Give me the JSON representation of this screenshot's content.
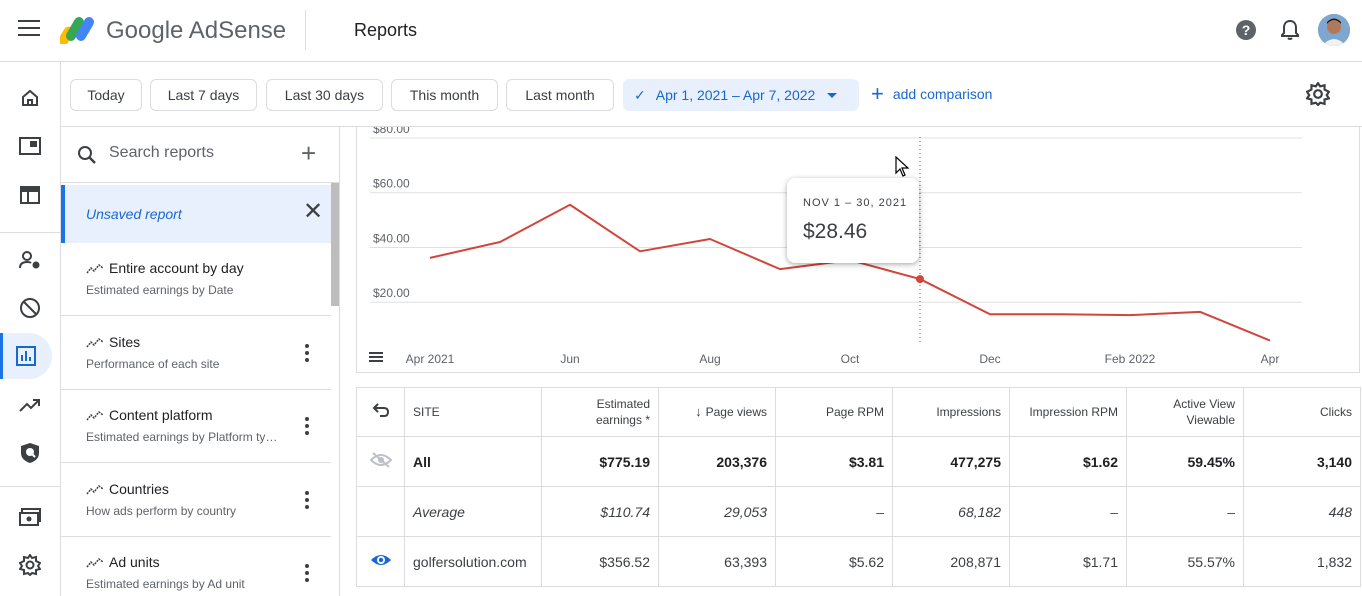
{
  "app": {
    "brand": "Google AdSense",
    "page_title": "Reports",
    "help_glyph": "?"
  },
  "date_chips": [
    "Today",
    "Last 7 days",
    "Last 30 days",
    "This month",
    "Last month"
  ],
  "date_range": {
    "label": "Apr 1, 2021 – Apr 7, 2022",
    "check_glyph": "✓"
  },
  "add_comparison": "add comparison",
  "search": {
    "placeholder": "Search reports",
    "add_glyph": "+"
  },
  "unsaved_report": {
    "label": "Unsaved report",
    "close_glyph": "✕"
  },
  "report_items": [
    {
      "title": "Entire account by day",
      "subtitle": "Estimated earnings by Date"
    },
    {
      "title": "Sites",
      "subtitle": "Performance of each site"
    },
    {
      "title": "Content platform",
      "subtitle": "Estimated earnings by Platform type"
    },
    {
      "title": "Countries",
      "subtitle": "How ads perform by country"
    },
    {
      "title": "Ad units",
      "subtitle": "Estimated earnings by Ad unit"
    }
  ],
  "rail_icons": [
    "home-icon",
    "ads-icon",
    "sites-icon",
    "account-access-icon",
    "blocking-controls-icon",
    "reports-icon",
    "optimization-icon",
    "policy-center-icon",
    "payments-icon",
    "settings-icon"
  ],
  "chart_data": {
    "type": "line",
    "x": [
      "Apr 2021",
      "May 2021",
      "Jun 2021",
      "Jul 2021",
      "Aug 2021",
      "Sep 2021",
      "Oct 2021",
      "Nov 2021",
      "Dec 2021",
      "Jan 2022",
      "Feb 2022",
      "Mar 2022",
      "Apr 2022"
    ],
    "series": [
      {
        "values": [
          36.2,
          42.0,
          55.6,
          38.6,
          43.1,
          32.1,
          35.4,
          28.46,
          15.6,
          15.6,
          15.3,
          16.5,
          6.0
        ]
      }
    ],
    "x_tick_labels": [
      "Apr 2021",
      "Jun",
      "Aug",
      "Oct",
      "Dec",
      "Feb 2022",
      "Apr"
    ],
    "y_tick_labels": [
      "$20.00",
      "$40.00",
      "$60.00",
      "$80.00"
    ],
    "y_ticks": [
      20,
      40,
      60,
      80
    ],
    "ylim": [
      0,
      84
    ],
    "grid": true,
    "line_color": "#d2453b",
    "highlight_index": 7,
    "tooltip": {
      "date": "NOV 1 – 30, 2021",
      "value": "$28.46"
    }
  },
  "table": {
    "headers": {
      "site": "SITE",
      "estimated_earnings": [
        "Estimated",
        "earnings *"
      ],
      "page_views": "Page views",
      "page_rpm": "Page RPM",
      "impressions": "Impressions",
      "impression_rpm": "Impression RPM",
      "active_view": [
        "Active View",
        "Viewable"
      ],
      "clicks": "Clicks"
    },
    "total_row": {
      "site": "All",
      "estimated_earnings": "$775.19",
      "page_views": "203,376",
      "page_rpm": "$3.81",
      "impressions": "477,275",
      "impression_rpm": "$1.62",
      "active_view": "59.45%",
      "clicks": "3,140"
    },
    "average_row": {
      "site": "Average",
      "estimated_earnings": "$110.74",
      "page_views": "29,053",
      "page_rpm": "–",
      "impressions": "68,182",
      "impression_rpm": "–",
      "active_view": "–",
      "clicks": "448"
    },
    "rows": [
      {
        "site": "golfersolution.com",
        "estimated_earnings": "$356.52",
        "page_views": "63,393",
        "page_rpm": "$5.62",
        "impressions": "208,871",
        "impression_rpm": "$1.71",
        "active_view": "55.57%",
        "clicks": "1,832"
      }
    ]
  },
  "colors": {
    "accent": "#1a73e8",
    "accent_text": "#1967d2",
    "selected_bg": "#e8f0fe",
    "line": "#d2453b"
  }
}
